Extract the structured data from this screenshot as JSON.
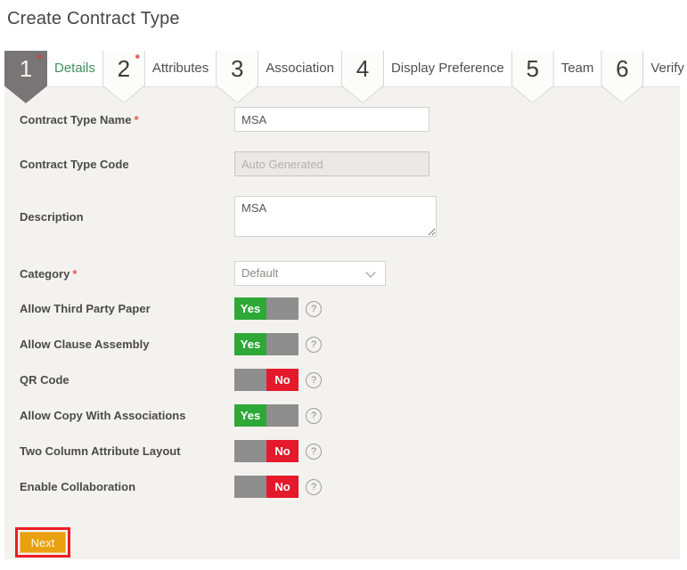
{
  "page": {
    "title": "Create Contract Type"
  },
  "wizard": {
    "steps": [
      {
        "number": "1",
        "label": "Details",
        "required_marker": "*"
      },
      {
        "number": "2",
        "label": "Attributes",
        "required_marker": "*"
      },
      {
        "number": "3",
        "label": "Association",
        "required_marker": ""
      },
      {
        "number": "4",
        "label": "Display Preference",
        "required_marker": ""
      },
      {
        "number": "5",
        "label": "Team",
        "required_marker": ""
      },
      {
        "number": "6",
        "label": "Verify",
        "required_marker": ""
      }
    ]
  },
  "form": {
    "required_marker": "*",
    "fields": {
      "contract_type_name": {
        "label": "Contract Type Name",
        "value": "MSA"
      },
      "contract_type_code": {
        "label": "Contract Type Code",
        "placeholder": "Auto Generated"
      },
      "description": {
        "label": "Description",
        "value": "MSA"
      },
      "category": {
        "label": "Category",
        "value": "Default"
      },
      "allow_third_party_paper": {
        "label": "Allow Third Party Paper",
        "value": "Yes"
      },
      "allow_clause_assembly": {
        "label": "Allow Clause Assembly",
        "value": "Yes"
      },
      "qr_code": {
        "label": "QR Code",
        "value": "No"
      },
      "allow_copy_with_associations": {
        "label": "Allow Copy With Associations",
        "value": "Yes"
      },
      "two_column_attribute_layout": {
        "label": "Two Column Attribute Layout",
        "value": "No"
      },
      "enable_collaboration": {
        "label": "Enable Collaboration",
        "value": "No"
      }
    }
  },
  "actions": {
    "next_label": "Next"
  },
  "icons": {
    "help_glyph": "?"
  },
  "colors": {
    "toggle_yes": "#2ea837",
    "toggle_no": "#e5192c",
    "toggle_off_gray": "#8e8e8e",
    "active_step": "#797475",
    "active_step_label": "#3f9159",
    "next_button": "#e9a00e",
    "annotation_box": "#ed1c24",
    "required_asterisk": "#e4544a",
    "panel_background": "#f4f2ef"
  }
}
